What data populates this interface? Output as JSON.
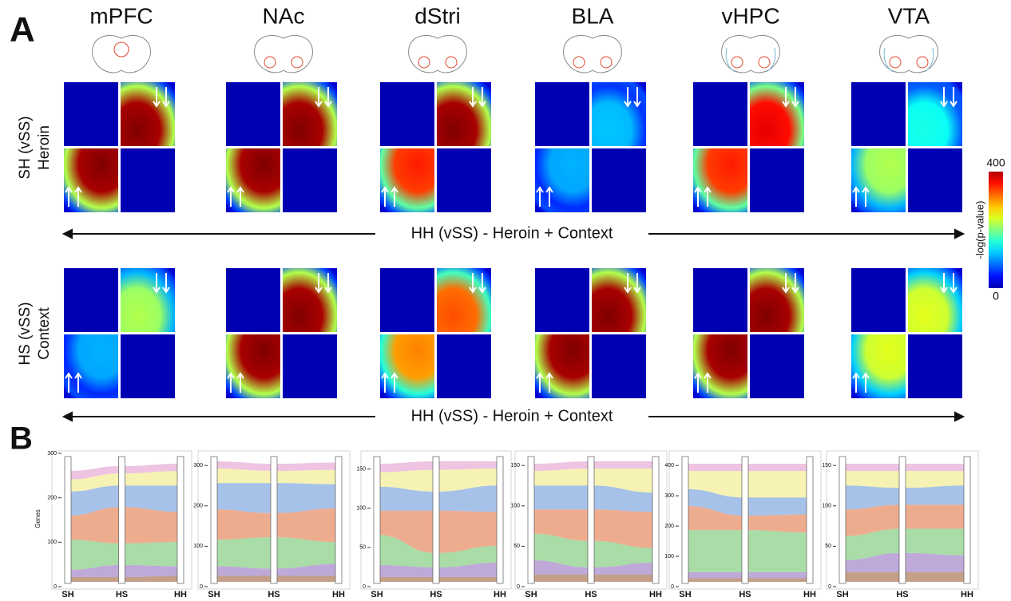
{
  "panel_a": {
    "label": "A",
    "regions": [
      "mPFC",
      "NAc",
      "dStri",
      "BLA",
      "vHPC",
      "VTA"
    ],
    "rows": [
      {
        "line1": "SH (vSS)",
        "line2": "Heroin"
      },
      {
        "line1": "HS (vSS)",
        "line2": "Context"
      }
    ],
    "axis_label": "HH (vSS) - Heroin + Context",
    "colorbar": {
      "label": "-log(p-value)",
      "max": 400,
      "min": 0
    }
  },
  "panel_b": {
    "label": "B",
    "ylabel": "Genes",
    "stages": [
      "SH",
      "HS",
      "HH"
    ],
    "plots": [
      {
        "ylim": [
          0,
          300
        ],
        "yticks": [
          0,
          100,
          200,
          300
        ]
      },
      {
        "ylim": [
          0,
          330
        ],
        "yticks": [
          0,
          100,
          200,
          300
        ]
      },
      {
        "ylim": [
          0,
          170
        ],
        "yticks": [
          0,
          50,
          100,
          150
        ]
      },
      {
        "ylim": [
          0,
          165
        ],
        "yticks": [
          0,
          50,
          100,
          150
        ]
      },
      {
        "ylim": [
          0,
          440
        ],
        "yticks": [
          0,
          100,
          200,
          300,
          400
        ]
      },
      {
        "ylim": [
          0,
          165
        ],
        "yticks": [
          0,
          50,
          100,
          150
        ]
      }
    ]
  }
}
